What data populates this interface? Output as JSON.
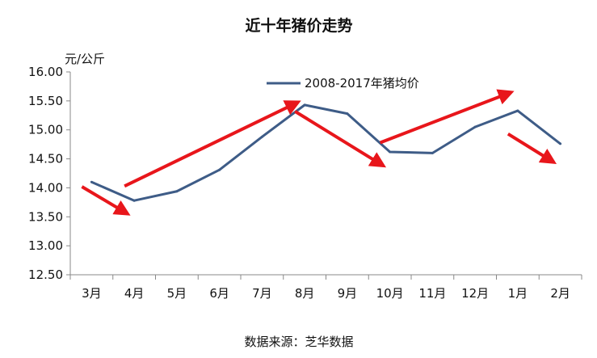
{
  "chart_data": {
    "type": "line",
    "title": "近十年猪价走势",
    "ylabel": "元/公斤",
    "xlabel": "",
    "categories": [
      "3月",
      "4月",
      "5月",
      "6月",
      "7月",
      "8月",
      "9月",
      "10月",
      "11月",
      "12月",
      "1月",
      "2月"
    ],
    "series": [
      {
        "name": "2008-2017年猪均价",
        "color": "#3e5c87",
        "values": [
          14.1,
          13.78,
          13.94,
          14.31,
          14.88,
          15.43,
          15.28,
          14.62,
          14.6,
          15.05,
          15.33,
          14.76
        ]
      }
    ],
    "ylim": [
      12.5,
      16.0
    ],
    "yticks": [
      "12.50",
      "13.00",
      "13.50",
      "14.00",
      "14.50",
      "15.00",
      "15.50",
      "16.00"
    ],
    "grid": false,
    "legend": "top-center",
    "annotation_color": "#e8161b",
    "trend_arrows": [
      {
        "from": [
          "3月",
          14.02
        ],
        "to": [
          "4月",
          13.55
        ]
      },
      {
        "from": [
          "4月",
          14.03
        ],
        "to": [
          "8月",
          15.48
        ]
      },
      {
        "from": [
          "8月",
          15.32
        ],
        "to": [
          "10月",
          14.38
        ]
      },
      {
        "from": [
          "10月",
          14.78
        ],
        "to": [
          "1月",
          15.65
        ]
      },
      {
        "from": [
          "1月",
          14.93
        ],
        "to": [
          "2月",
          14.44
        ]
      }
    ]
  },
  "source_note": "数据来源：芝华数据"
}
